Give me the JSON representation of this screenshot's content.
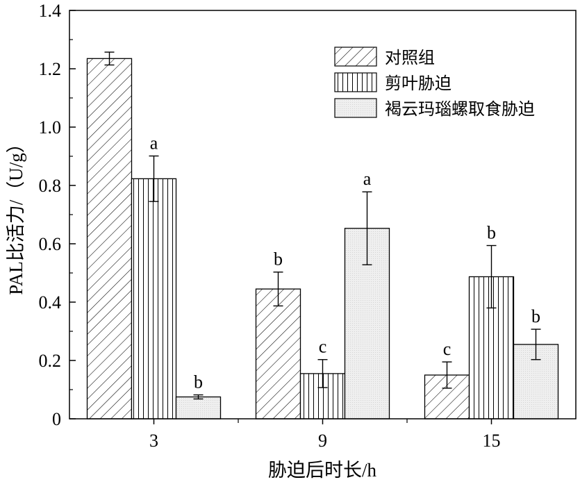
{
  "chart_data": {
    "type": "bar",
    "xlabel": "胁迫后时长/h",
    "ylabel": "PAL比活力/（U/g）",
    "ylim": [
      0,
      1.4
    ],
    "yticks": [
      0,
      0.2,
      0.4,
      0.6,
      0.8,
      1.0,
      1.2,
      1.4
    ],
    "ytick_labels": [
      "0",
      "0.2",
      "0.4",
      "0.6",
      "0.8",
      "1.0",
      "1.2",
      "1.4"
    ],
    "categories": [
      "3",
      "9",
      "15"
    ],
    "legend_position": "top-right",
    "series": [
      {
        "name": "对照组",
        "pattern": "diagonal-hatch",
        "values": [
          1.235,
          0.445,
          0.15
        ],
        "errors": [
          0.022,
          0.058,
          0.045
        ],
        "labels": [
          "",
          "b",
          "c"
        ]
      },
      {
        "name": "剪叶胁迫",
        "pattern": "vertical-lines",
        "values": [
          0.823,
          0.155,
          0.487
        ],
        "errors": [
          0.078,
          0.048,
          0.107
        ],
        "labels": [
          "a",
          "c",
          "b"
        ]
      },
      {
        "name": "褐云玛瑙螺取食胁迫",
        "pattern": "light-gray-fill",
        "values": [
          0.075,
          0.653,
          0.255
        ],
        "errors": [
          0.007,
          0.125,
          0.052
        ],
        "labels": [
          "b",
          "a",
          "b"
        ]
      }
    ]
  }
}
